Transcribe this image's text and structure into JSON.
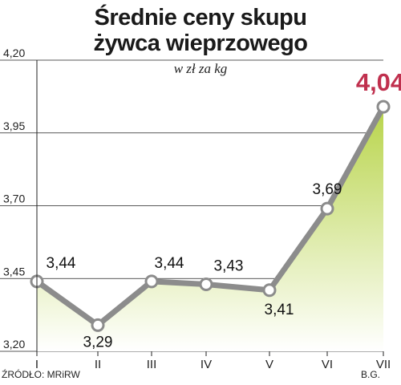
{
  "title_line1": "Średnie ceny skupu",
  "title_line2": "żywca wieprzowego",
  "source": "ŹRÓDŁO: MRiRW",
  "author": "B.G.",
  "chart_data": {
    "type": "area",
    "title": "Średnie ceny skupu żywca wieprzowego",
    "unit_label": "w zł za kg",
    "categories": [
      "I",
      "II",
      "III",
      "IV",
      "V",
      "VI",
      "VII"
    ],
    "series": [
      {
        "values": [
          3.44,
          3.29,
          3.44,
          3.43,
          3.41,
          3.69,
          4.04
        ]
      }
    ],
    "value_labels": [
      "3,44",
      "3,29",
      "3,44",
      "3,43",
      "3,41",
      "3,69",
      "4,04"
    ],
    "yticks": [
      "4,20",
      "3,95",
      "3,70",
      "3,45",
      "3,20"
    ],
    "ytick_values": [
      4.2,
      3.95,
      3.7,
      3.45,
      3.2
    ],
    "ylim": [
      3.2,
      4.2
    ],
    "grid": true,
    "colors": {
      "line": "#8c8c8c",
      "marker_fill": "#ffffff",
      "area_top": "#b8d44a",
      "area_bottom": "#ffffff",
      "highlight_label": "#c0304e",
      "grid": "#222222"
    }
  }
}
